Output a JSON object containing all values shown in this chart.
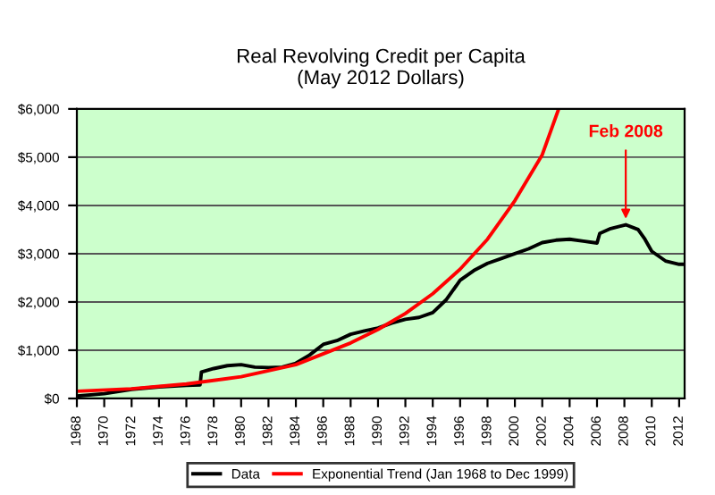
{
  "chart_data": {
    "type": "line",
    "title": "Real Revolving Credit per Capita\n(May 2012 Dollars)",
    "xlim": [
      1968,
      2012.4
    ],
    "xticks": [
      1968,
      1970,
      1972,
      1974,
      1976,
      1978,
      1980,
      1982,
      1984,
      1986,
      1988,
      1990,
      1992,
      1994,
      1996,
      1998,
      2000,
      2002,
      2004,
      2006,
      2008,
      2010,
      2012
    ],
    "ylim": [
      0,
      6000
    ],
    "yticks": [
      {
        "value": 0,
        "label": "$0"
      },
      {
        "value": 1000,
        "label": "$1,000"
      },
      {
        "value": 2000,
        "label": "$2,000"
      },
      {
        "value": 3000,
        "label": "$3,000"
      },
      {
        "value": 4000,
        "label": "$4,000"
      },
      {
        "value": 5000,
        "label": "$5,000"
      },
      {
        "value": 6000,
        "label": "$6,000"
      }
    ],
    "grid": "y",
    "legend": "bottom",
    "series": [
      {
        "name": "Data",
        "color": "#000000",
        "x": [
          1968,
          1970,
          1972,
          1974,
          1976,
          1977,
          1977.1,
          1978,
          1979,
          1980,
          1981,
          1982,
          1983,
          1984,
          1985,
          1986,
          1987,
          1988,
          1989,
          1990,
          1991,
          1992,
          1993,
          1994,
          1995,
          1996,
          1997,
          1998,
          1999,
          2000,
          2001,
          2002,
          2003,
          2004,
          2005,
          2006,
          2006.2,
          2007,
          2008.1,
          2009,
          2009.5,
          2010,
          2011,
          2012,
          2012.4
        ],
        "values": [
          50,
          100,
          190,
          240,
          270,
          280,
          550,
          620,
          680,
          700,
          650,
          640,
          650,
          730,
          900,
          1120,
          1200,
          1330,
          1400,
          1460,
          1560,
          1640,
          1680,
          1780,
          2050,
          2450,
          2650,
          2800,
          2900,
          3000,
          3100,
          3230,
          3280,
          3300,
          3260,
          3220,
          3420,
          3520,
          3600,
          3500,
          3300,
          3050,
          2850,
          2780,
          2780
        ]
      },
      {
        "name": "Exponential Trend (Jan 1968 to Dec 1999)",
        "color": "#ff0000",
        "x": [
          1968,
          1972,
          1976,
          1980,
          1984,
          1988,
          1990,
          1992,
          1994,
          1996,
          1998,
          2000,
          2002,
          2003.2
        ],
        "values": [
          150,
          200,
          300,
          450,
          700,
          1150,
          1430,
          1760,
          2170,
          2680,
          3300,
          4100,
          5050,
          6000
        ]
      }
    ],
    "annotations": [
      {
        "text": "Feb 2008",
        "x": 2008.1,
        "y": 3620
      }
    ]
  }
}
